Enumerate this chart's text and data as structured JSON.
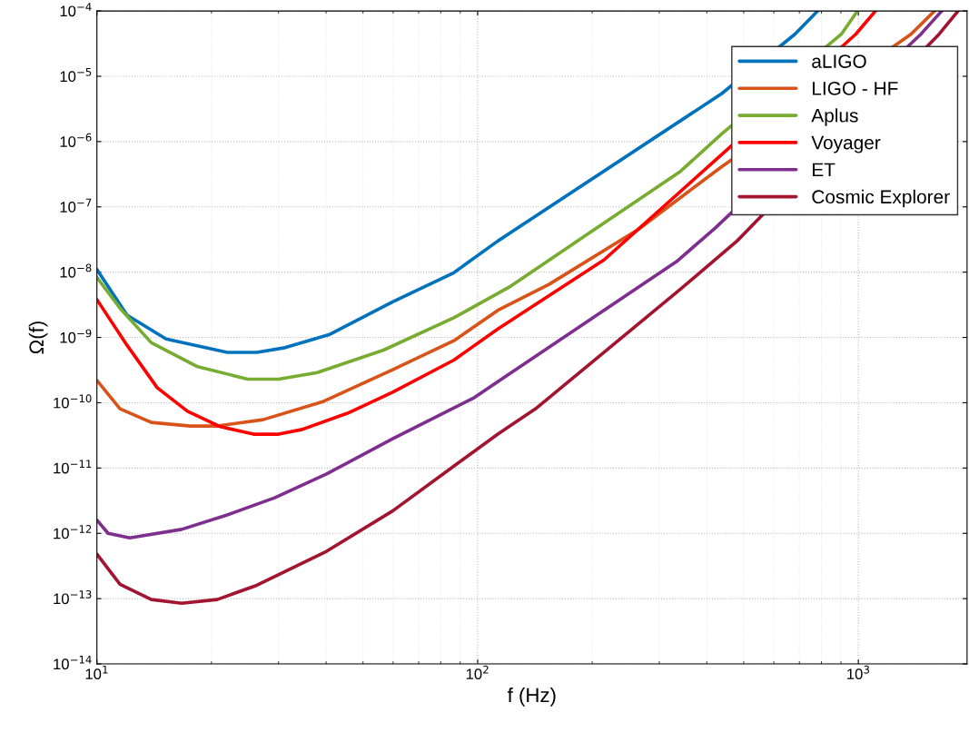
{
  "chart_data": {
    "type": "line",
    "xlabel": "f (Hz)",
    "ylabel": "Ω(f)",
    "log": "xy",
    "grid": true,
    "legend": "top right",
    "line_style": "solid",
    "marker": "none",
    "xlim": [
      10,
      1930
    ],
    "xticks": [
      {
        "value": 10,
        "label": "10$^{1}$"
      },
      {
        "value": 100,
        "label": "10$^{2}$"
      },
      {
        "value": 1000,
        "label": "10$^{3}$"
      }
    ],
    "ylim": [
      1e-14,
      0.0001
    ],
    "yticks": [
      {
        "value": 1e-14,
        "label": "10$^{−14}$"
      },
      {
        "value": 1e-13,
        "label": "10$^{−13}$"
      },
      {
        "value": 1e-12,
        "label": "10$^{−12}$"
      },
      {
        "value": 1e-11,
        "label": "10$^{−11}$"
      },
      {
        "value": 1e-10,
        "label": "10$^{−10}$"
      },
      {
        "value": 1e-09,
        "label": "10$^{−9}$"
      },
      {
        "value": 1e-08,
        "label": "10$^{−8}$"
      },
      {
        "value": 1e-07,
        "label": "10$^{−7}$"
      },
      {
        "value": 1e-06,
        "label": "10$^{−6}$"
      },
      {
        "value": 1e-05,
        "label": "10$^{−5}$"
      },
      {
        "value": 0.0001,
        "label": "10$^{−4}$"
      }
    ],
    "series": [
      {
        "name": "aLIGO",
        "color": "#0072bd",
        "x": [
          10,
          12,
          15.2,
          22,
          26.3,
          30.9,
          40.7,
          59.8,
          86.6,
          113,
          437,
          681,
          782
        ],
        "values": [
          1.1e-08,
          2.2e-09,
          9.5e-10,
          5.9e-10,
          5.9e-10,
          6.9e-10,
          1.1e-09,
          3.5e-09,
          9.8e-09,
          3e-08,
          5.4e-06,
          4.4e-05,
          0.0001
        ]
      },
      {
        "name": "LIGO - HF",
        "color": "#d95319",
        "x": [
          10,
          11.5,
          13.9,
          17.6,
          20.7,
          27.3,
          39.4,
          59.8,
          86.6,
          113,
          154,
          264,
          437,
          1374,
          1585
        ],
        "values": [
          2.2e-10,
          8.1e-11,
          5e-11,
          4.4e-11,
          4.4e-11,
          5.5e-11,
          1.05e-10,
          3.2e-10,
          8.9e-10,
          2.6e-09,
          6.5e-09,
          4.5e-08,
          4.1e-07,
          4.4e-05,
          0.0001
        ]
      },
      {
        "name": "Aplus",
        "color": "#77ac30",
        "x": [
          10,
          11.5,
          13.9,
          18.3,
          24.9,
          30,
          37.9,
          56.6,
          86.6,
          121,
          341,
          437,
          902,
          995
        ],
        "values": [
          8.3e-09,
          2.8e-09,
          8.3e-10,
          3.6e-10,
          2.3e-10,
          2.3e-10,
          2.9e-10,
          6.4e-10,
          2e-09,
          5.9e-09,
          3.5e-07,
          1.3e-06,
          4.4e-05,
          0.0001
        ]
      },
      {
        "name": "Voyager",
        "color": "#ff0000",
        "x": [
          10,
          12,
          14.4,
          17.3,
          21.1,
          25.8,
          30,
          34.6,
          45.5,
          59.8,
          86.6,
          113,
          215,
          437,
          984,
          1109
        ],
        "values": [
          3.8e-09,
          7.6e-10,
          1.7e-10,
          7.4e-11,
          4.3e-11,
          3.3e-11,
          3.3e-11,
          3.9e-11,
          6.9e-11,
          1.45e-10,
          4.5e-10,
          1.35e-09,
          1.55e-08,
          6.3e-07,
          4.4e-05,
          0.0001
        ]
      },
      {
        "name": "ET",
        "color": "#7e2f8e",
        "x": [
          10,
          10.7,
          12.2,
          16.7,
          21.9,
          29.3,
          40.1,
          59.8,
          98,
          113,
          333,
          420,
          1459,
          1656
        ],
        "values": [
          1.6e-12,
          1e-12,
          8.5e-13,
          1.15e-12,
          1.9e-12,
          3.5e-12,
          8.1e-12,
          2.8e-11,
          1.2e-10,
          2.1e-10,
          1.45e-08,
          4.7e-08,
          4.4e-05,
          0.0001
        ]
      },
      {
        "name": "Cosmic Explorer",
        "color": "#a2142f",
        "x": [
          10,
          11.5,
          13.9,
          16.7,
          20.7,
          26.3,
          40.1,
          59.8,
          86.6,
          113,
          142,
          341,
          480,
          1629,
          1828
        ],
        "values": [
          4.8e-13,
          1.66e-13,
          9.7e-14,
          8.5e-14,
          9.7e-14,
          1.6e-13,
          5.3e-13,
          2.2e-12,
          1.07e-11,
          3.3e-11,
          8.1e-11,
          5.5e-09,
          3e-08,
          4.4e-05,
          0.0001
        ]
      }
    ]
  }
}
